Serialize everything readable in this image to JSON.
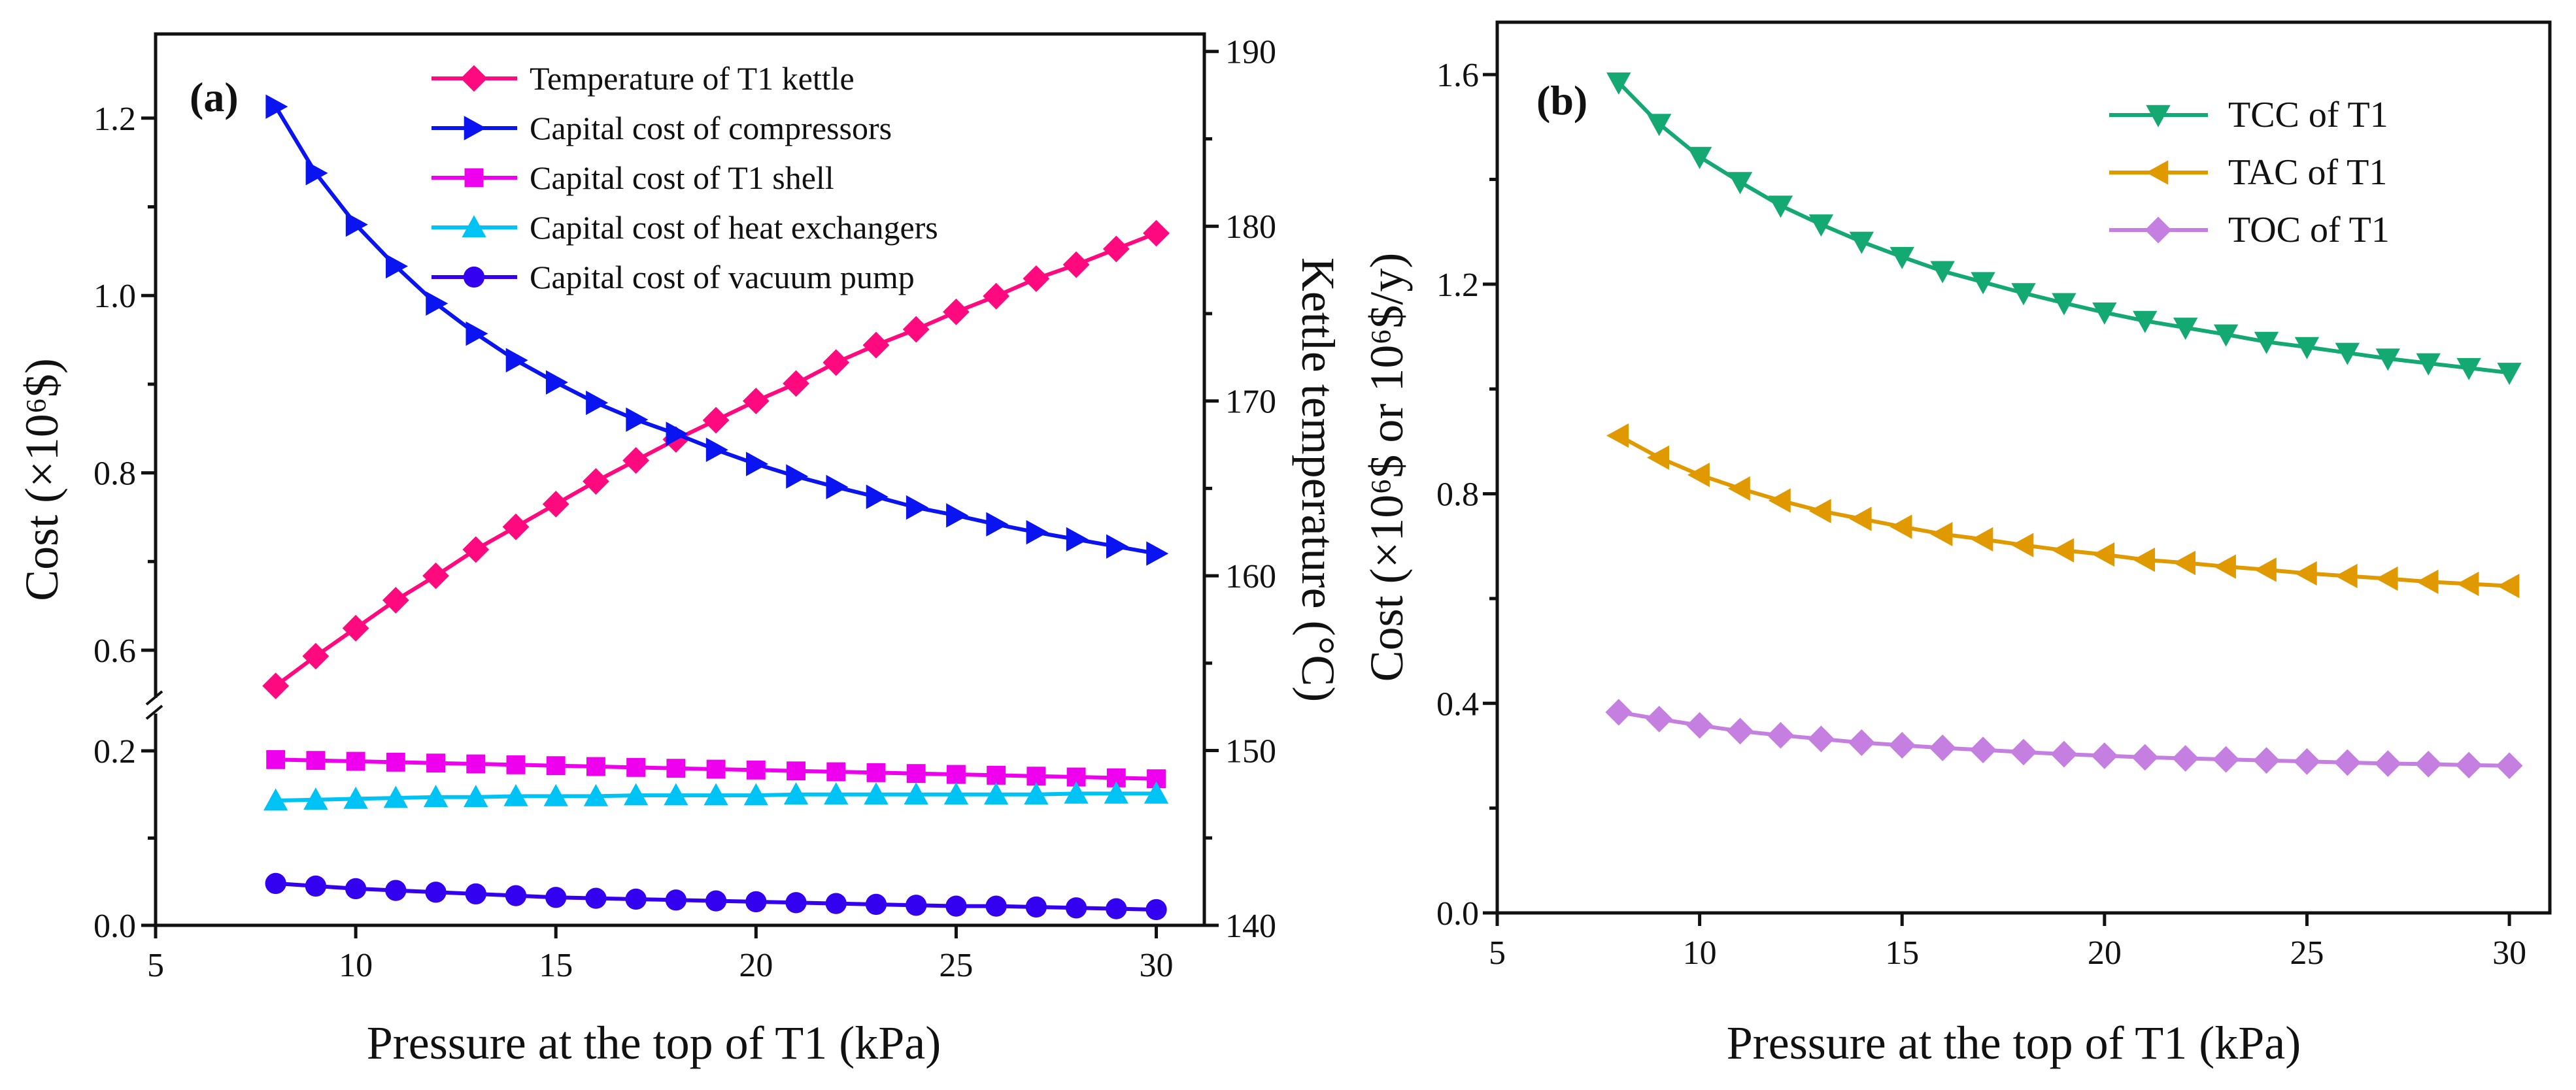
{
  "chart_data": [
    {
      "type": "line",
      "panel_label": "(a)",
      "xlabel": "Pressure at the top of T1 (kPa)",
      "ylabel": "Cost (×10⁶$)",
      "ylabel_right": "Kettle temperature (°C)",
      "xlim": [
        5,
        31.2
      ],
      "xticks": [
        5,
        10,
        15,
        20,
        25,
        30
      ],
      "ylim_lower": [
        0,
        0.25
      ],
      "ylim_upper": [
        0.54,
        1.3
      ],
      "y_axis_break": [
        0.25,
        0.54
      ],
      "yticks": [
        "0.0",
        "0.2",
        "0.6",
        "0.8",
        "1.0",
        "1.2"
      ],
      "ylim_right": [
        140,
        191
      ],
      "yticks_right": [
        140,
        150,
        160,
        170,
        180,
        190
      ],
      "legend_position": "top-center",
      "x": [
        8,
        9,
        10,
        11,
        12,
        13,
        14,
        15,
        16,
        17,
        18,
        19,
        20,
        21,
        22,
        23,
        24,
        25,
        26,
        27,
        28,
        29,
        30
      ],
      "series": [
        {
          "name": "Temperature of T1 kettle",
          "axis": "right",
          "marker": "diamond",
          "color": "#ff0a7e",
          "values": [
            153.7,
            155.4,
            157.0,
            158.6,
            160.0,
            161.5,
            162.8,
            164.1,
            165.4,
            166.6,
            167.8,
            168.9,
            170.0,
            171.0,
            172.2,
            173.2,
            174.1,
            175.1,
            176.0,
            177.0,
            177.8,
            178.7,
            179.6
          ]
        },
        {
          "name": "Capital cost of compressors",
          "axis": "left",
          "marker": "triangle-right",
          "color": "#0a14f0",
          "values": [
            1.213,
            1.138,
            1.08,
            1.033,
            0.991,
            0.957,
            0.927,
            0.902,
            0.879,
            0.86,
            0.844,
            0.826,
            0.81,
            0.796,
            0.784,
            0.773,
            0.761,
            0.752,
            0.742,
            0.733,
            0.725,
            0.717,
            0.709
          ]
        },
        {
          "name": "Capital cost of T1 shell",
          "axis": "left",
          "marker": "square",
          "color": "#ee00ee",
          "values": [
            0.19,
            0.189,
            0.188,
            0.187,
            0.186,
            0.185,
            0.184,
            0.183,
            0.182,
            0.181,
            0.18,
            0.179,
            0.178,
            0.177,
            0.176,
            0.175,
            0.174,
            0.173,
            0.172,
            0.171,
            0.17,
            0.169,
            0.168
          ]
        },
        {
          "name": "Capital cost of heat exchangers",
          "axis": "left",
          "marker": "triangle-up",
          "color": "#00c3f5",
          "values": [
            0.143,
            0.144,
            0.145,
            0.146,
            0.147,
            0.147,
            0.148,
            0.148,
            0.148,
            0.149,
            0.149,
            0.149,
            0.149,
            0.15,
            0.15,
            0.15,
            0.15,
            0.15,
            0.15,
            0.15,
            0.151,
            0.151,
            0.151
          ]
        },
        {
          "name": "Capital cost of vacuum pump",
          "axis": "left",
          "marker": "circle",
          "color": "#3300f0",
          "values": [
            0.048,
            0.045,
            0.042,
            0.04,
            0.038,
            0.036,
            0.034,
            0.032,
            0.031,
            0.03,
            0.029,
            0.028,
            0.027,
            0.026,
            0.025,
            0.024,
            0.023,
            0.022,
            0.022,
            0.021,
            0.02,
            0.019,
            0.018
          ]
        }
      ]
    },
    {
      "type": "line",
      "panel_label": "(b)",
      "xlabel": "Pressure at the top of T1 (kPa)",
      "ylabel": "Cost (×10⁶$ or 10⁶$/y)",
      "xlim": [
        5,
        31
      ],
      "xticks": [
        5,
        10,
        15,
        20,
        25,
        30
      ],
      "ylim": [
        0,
        1.7
      ],
      "yticks": [
        "0.0",
        "0.4",
        "0.8",
        "1.2",
        "1.6"
      ],
      "legend_position": "top-right",
      "x": [
        8,
        9,
        10,
        11,
        12,
        13,
        14,
        15,
        16,
        17,
        18,
        19,
        20,
        21,
        22,
        23,
        24,
        25,
        26,
        27,
        28,
        29,
        30
      ],
      "series": [
        {
          "name": "TCC of T1",
          "marker": "triangle-down",
          "color": "#14a873",
          "values": [
            1.585,
            1.506,
            1.443,
            1.395,
            1.35,
            1.314,
            1.281,
            1.252,
            1.225,
            1.204,
            1.183,
            1.164,
            1.146,
            1.13,
            1.117,
            1.104,
            1.09,
            1.08,
            1.069,
            1.058,
            1.049,
            1.04,
            1.031
          ]
        },
        {
          "name": "TAC of T1",
          "marker": "triangle-left",
          "color": "#e09a00",
          "values": [
            0.911,
            0.869,
            0.836,
            0.81,
            0.787,
            0.767,
            0.752,
            0.737,
            0.723,
            0.713,
            0.702,
            0.692,
            0.684,
            0.674,
            0.668,
            0.661,
            0.655,
            0.648,
            0.643,
            0.638,
            0.632,
            0.628,
            0.624
          ]
        },
        {
          "name": "TOC of T1",
          "marker": "diamond",
          "color": "#c47fe0",
          "values": [
            0.383,
            0.37,
            0.358,
            0.347,
            0.339,
            0.332,
            0.325,
            0.32,
            0.315,
            0.311,
            0.307,
            0.303,
            0.3,
            0.297,
            0.295,
            0.293,
            0.291,
            0.289,
            0.287,
            0.285,
            0.284,
            0.282,
            0.281
          ]
        }
      ]
    }
  ]
}
